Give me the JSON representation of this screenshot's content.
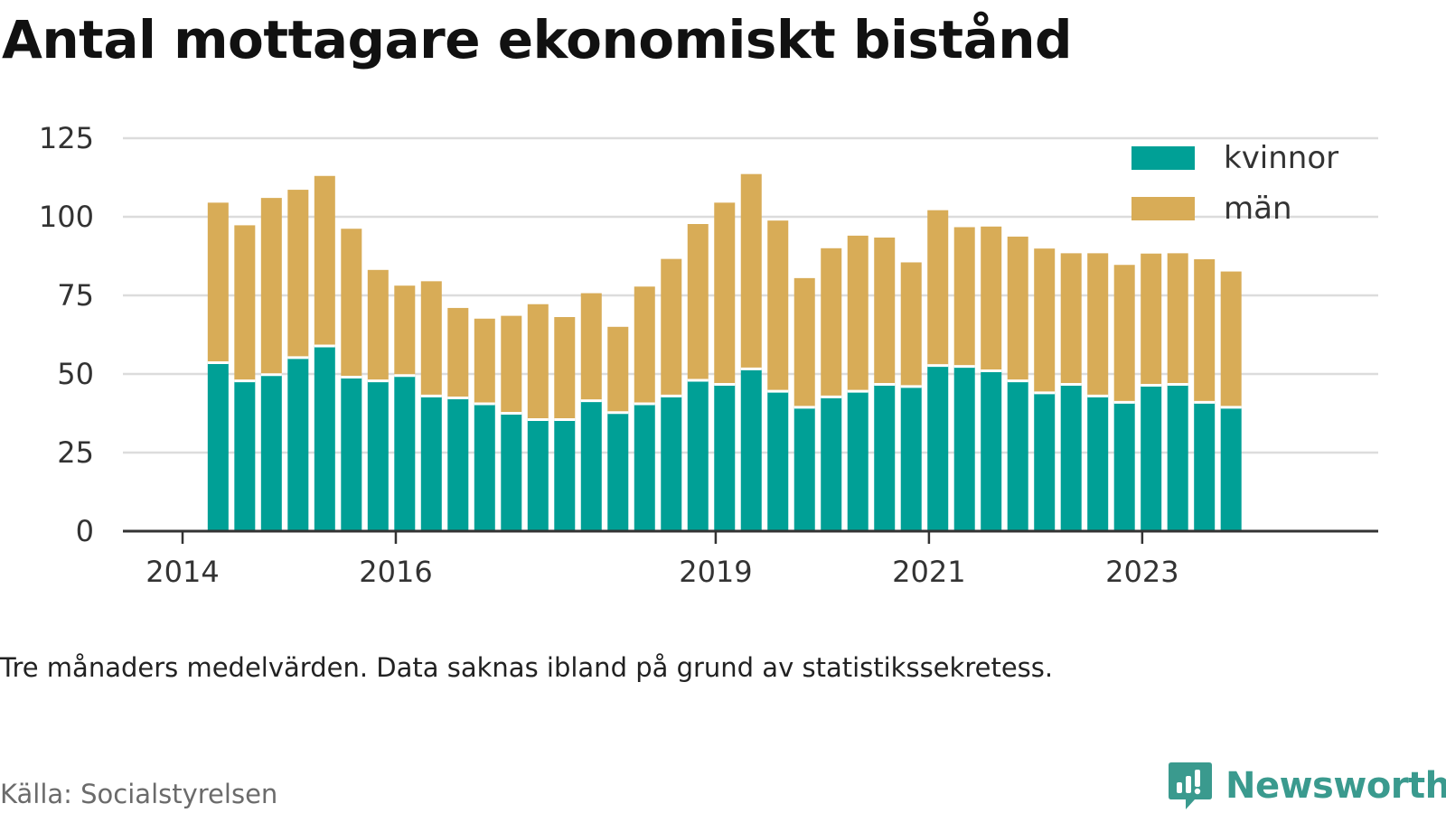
{
  "chart_data": {
    "type": "bar",
    "stacked": true,
    "title": "Antal mottagare ekonomiskt bistånd",
    "note": "Tre månaders medelvärden. Data saknas ibland på grund av statistikssekretess.",
    "source": "Källa: Socialstyrelsen",
    "brand": "Newsworthy",
    "x_axis": {
      "type": "time",
      "start": "2014-01",
      "end": "2024-12",
      "ticks": [
        {
          "label": "2014",
          "date": "2014-01"
        },
        {
          "label": "2016",
          "date": "2016-01"
        },
        {
          "label": "2019",
          "date": "2019-01"
        },
        {
          "label": "2021",
          "date": "2021-01"
        },
        {
          "label": "2023",
          "date": "2023-01"
        }
      ]
    },
    "y_axis": {
      "min": 0,
      "max": 125,
      "ticks": [
        0,
        25,
        50,
        75,
        100,
        125
      ],
      "grid": true
    },
    "legend": {
      "position": "top-right"
    },
    "x": [
      "2014-05",
      "2014-08",
      "2014-11",
      "2015-02",
      "2015-05",
      "2015-08",
      "2015-11",
      "2016-02",
      "2016-05",
      "2016-08",
      "2016-11",
      "2017-02",
      "2017-05",
      "2017-08",
      "2017-11",
      "2018-02",
      "2018-05",
      "2018-08",
      "2018-11",
      "2019-02",
      "2019-05",
      "2019-08",
      "2019-11",
      "2020-02",
      "2020-05",
      "2020-08",
      "2020-11",
      "2021-02",
      "2021-05",
      "2021-08",
      "2021-11",
      "2022-02",
      "2022-05",
      "2022-08",
      "2022-11",
      "2023-02",
      "2023-05",
      "2023-08",
      "2023-11"
    ],
    "series": [
      {
        "name": "kvinnor",
        "color": "#00a096",
        "values": [
          53.6,
          47.8,
          49.8,
          55.2,
          58.9,
          49,
          47.8,
          49.5,
          43,
          42.4,
          40.5,
          37.5,
          35.5,
          35.5,
          41.5,
          37.7,
          40.5,
          43,
          48,
          46.7,
          51.6,
          44.5,
          39.4,
          42.7,
          44.5,
          46.7,
          46,
          52.7,
          52.4,
          51,
          47.8,
          44,
          46.7,
          43,
          41,
          46.4,
          46.7,
          41,
          39.4
        ]
      },
      {
        "name": "män",
        "color": "#d8ac57",
        "values": [
          50.9,
          49.5,
          56.2,
          53.4,
          54.1,
          47.2,
          35.3,
          28.6,
          36.5,
          28.6,
          27.1,
          31,
          36.7,
          32.6,
          34.2,
          27.3,
          37.3,
          43.6,
          49.7,
          57.8,
          62,
          54.3,
          41.1,
          47.3,
          49.5,
          46.7,
          39.5,
          49.4,
          44.3,
          45.9,
          45.9,
          45.9,
          41.7,
          45.4,
          43.7,
          41.9,
          41.7,
          45.5,
          43.2
        ]
      }
    ]
  }
}
